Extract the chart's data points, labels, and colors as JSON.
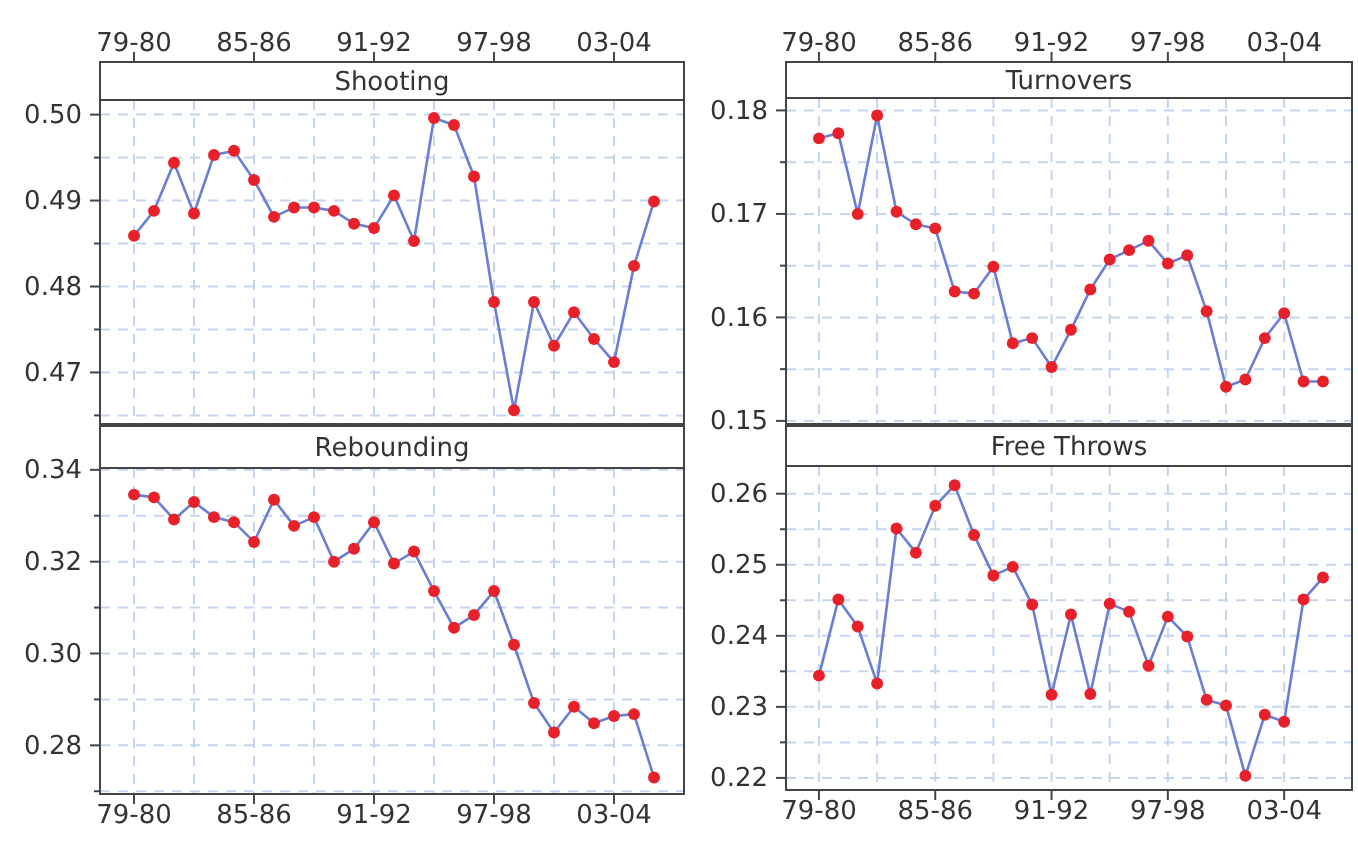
{
  "chart_data": [
    {
      "type": "line",
      "title": "Shooting",
      "categories": [
        "79-80",
        null,
        null,
        null,
        null,
        null,
        "85-86",
        null,
        null,
        null,
        null,
        null,
        "91-92",
        null,
        null,
        null,
        null,
        null,
        "97-98",
        null,
        null,
        null,
        null,
        null,
        "03-04",
        null,
        null
      ],
      "ylim": [
        0.464,
        0.5017
      ],
      "yticks": [
        {
          "value": 0.465,
          "label": null
        },
        {
          "value": 0.47,
          "label": "0.47"
        },
        {
          "value": 0.475,
          "label": null
        },
        {
          "value": 0.48,
          "label": "0.48"
        },
        {
          "value": 0.485,
          "label": null
        },
        {
          "value": 0.49,
          "label": "0.49"
        },
        {
          "value": 0.495,
          "label": null
        },
        {
          "value": 0.5,
          "label": "0.50"
        }
      ],
      "grid": true,
      "marker": "circle",
      "line_style": "solid",
      "series": [
        {
          "color": "#6a7ed4",
          "colors": [
            "#e8202a",
            "#e8202a",
            "#e8202a",
            "#e8202a",
            "#e8202a",
            "#e8202a",
            "#e8202a",
            "#e8202a",
            "#e8202a",
            "#e8202a",
            "#e8202a",
            "#e8202a",
            "#e8202a",
            "#e8202a",
            "#e8202a",
            "#e8202a",
            "#e8202a",
            "#e8202a",
            "#e8202a",
            "#e8202a",
            "#e8202a",
            "#e8202a",
            "#e8202a",
            "#e8202a",
            "#e8202a",
            "#e8202a",
            "#e8202a"
          ],
          "values": [
            0.4859,
            0.4888,
            0.4944,
            0.4885,
            0.4953,
            0.4958,
            0.4924,
            0.4881,
            0.4892,
            0.4892,
            0.4888,
            0.4873,
            0.4868,
            0.4906,
            0.4853,
            0.4996,
            0.4988,
            0.4928,
            0.4782,
            0.4656,
            0.4782,
            0.4731,
            0.477,
            0.4739,
            0.4712,
            0.4824,
            0.4899
          ]
        }
      ]
    },
    {
      "type": "line",
      "title": "Turnovers",
      "categories": [
        "79-80",
        null,
        null,
        null,
        null,
        null,
        "85-86",
        null,
        null,
        null,
        null,
        null,
        "91-92",
        null,
        null,
        null,
        null,
        null,
        "97-98",
        null,
        null,
        null,
        null,
        null,
        "03-04",
        null,
        null
      ],
      "ylim": [
        0.1497,
        0.1812
      ],
      "yticks": [
        {
          "value": 0.15,
          "label": "0.15"
        },
        {
          "value": 0.155,
          "label": null
        },
        {
          "value": 0.16,
          "label": "0.16"
        },
        {
          "value": 0.165,
          "label": null
        },
        {
          "value": 0.17,
          "label": "0.17"
        },
        {
          "value": 0.175,
          "label": null
        },
        {
          "value": 0.18,
          "label": "0.18"
        }
      ],
      "grid": true,
      "marker": "circle",
      "line_style": "solid",
      "series": [
        {
          "color": "#6a7ed4",
          "colors": [
            "#e8202a",
            "#e8202a",
            "#e8202a",
            "#e8202a",
            "#e8202a",
            "#e8202a",
            "#e8202a",
            "#e8202a",
            "#e8202a",
            "#e8202a",
            "#e8202a",
            "#e8202a",
            "#e8202a",
            "#e8202a",
            "#e8202a",
            "#e8202a",
            "#e8202a",
            "#e8202a",
            "#e8202a",
            "#e8202a",
            "#e8202a",
            "#e8202a",
            "#e8202a",
            "#e8202a",
            "#e8202a",
            "#e8202a",
            "#e8202a"
          ],
          "values": [
            0.1773,
            0.1778,
            0.17,
            0.1795,
            0.1702,
            0.169,
            0.1686,
            0.1625,
            0.1623,
            0.1649,
            0.1575,
            0.158,
            0.1552,
            0.1588,
            0.1627,
            0.1656,
            0.1665,
            0.1674,
            0.1652,
            0.166,
            0.1606,
            0.1533,
            0.154,
            0.158,
            0.1604,
            0.1538,
            0.1538
          ]
        }
      ]
    },
    {
      "type": "line",
      "title": "Rebounding",
      "categories": [
        "79-80",
        null,
        null,
        null,
        null,
        null,
        "85-86",
        null,
        null,
        null,
        null,
        null,
        "91-92",
        null,
        null,
        null,
        null,
        null,
        "97-98",
        null,
        null,
        null,
        null,
        null,
        "03-04",
        null,
        null
      ],
      "ylim": [
        0.2694,
        0.3404
      ],
      "yticks": [
        {
          "value": 0.27,
          "label": null
        },
        {
          "value": 0.28,
          "label": "0.28"
        },
        {
          "value": 0.29,
          "label": null
        },
        {
          "value": 0.3,
          "label": "0.30"
        },
        {
          "value": 0.31,
          "label": null
        },
        {
          "value": 0.32,
          "label": "0.32"
        },
        {
          "value": 0.33,
          "label": null
        },
        {
          "value": 0.34,
          "label": "0.34"
        }
      ],
      "grid": true,
      "marker": "circle",
      "line_style": "solid",
      "series": [
        {
          "color": "#6a7ed4",
          "colors": [
            "#e8202a",
            "#e8202a",
            "#e8202a",
            "#e8202a",
            "#e8202a",
            "#e8202a",
            "#e8202a",
            "#e8202a",
            "#e8202a",
            "#e8202a",
            "#e8202a",
            "#e8202a",
            "#e8202a",
            "#e8202a",
            "#e8202a",
            "#e8202a",
            "#e8202a",
            "#e8202a",
            "#e8202a",
            "#e8202a",
            "#e8202a",
            "#e8202a",
            "#e8202a",
            "#e8202a",
            "#e8202a",
            "#e8202a",
            "#e8202a"
          ],
          "values": [
            0.3346,
            0.334,
            0.3292,
            0.333,
            0.3297,
            0.3286,
            0.3243,
            0.3335,
            0.3278,
            0.3297,
            0.32,
            0.3228,
            0.3286,
            0.3196,
            0.3222,
            0.3136,
            0.3056,
            0.3084,
            0.3136,
            0.3019,
            0.2892,
            0.2828,
            0.2884,
            0.2848,
            0.2864,
            0.2868,
            0.273
          ]
        }
      ]
    },
    {
      "type": "line",
      "title": "Free Throws",
      "categories": [
        "79-80",
        null,
        null,
        null,
        null,
        null,
        "85-86",
        null,
        null,
        null,
        null,
        null,
        "91-92",
        null,
        null,
        null,
        null,
        null,
        "97-98",
        null,
        null,
        null,
        null,
        null,
        "03-04",
        null,
        null
      ],
      "ylim": [
        0.2183,
        0.2639
      ],
      "yticks": [
        {
          "value": 0.22,
          "label": "0.22"
        },
        {
          "value": 0.225,
          "label": null
        },
        {
          "value": 0.23,
          "label": "0.23"
        },
        {
          "value": 0.235,
          "label": null
        },
        {
          "value": 0.24,
          "label": "0.24"
        },
        {
          "value": 0.245,
          "label": null
        },
        {
          "value": 0.25,
          "label": "0.25"
        },
        {
          "value": 0.255,
          "label": null
        },
        {
          "value": 0.26,
          "label": "0.26"
        }
      ],
      "grid": true,
      "marker": "circle",
      "line_style": "solid",
      "series": [
        {
          "color": "#6a7ed4",
          "colors": [
            "#e8202a",
            "#e8202a",
            "#e8202a",
            "#e8202a",
            "#e8202a",
            "#e8202a",
            "#e8202a",
            "#e8202a",
            "#e8202a",
            "#e8202a",
            "#e8202a",
            "#e8202a",
            "#e8202a",
            "#e8202a",
            "#e8202a",
            "#e8202a",
            "#e8202a",
            "#e8202a",
            "#e8202a",
            "#e8202a",
            "#e8202a",
            "#e8202a",
            "#e8202a",
            "#e8202a",
            "#e8202a",
            "#e8202a",
            "#e8202a"
          ],
          "values": [
            0.2344,
            0.2451,
            0.2413,
            0.2333,
            0.2551,
            0.2517,
            0.2583,
            0.2612,
            0.2542,
            0.2485,
            0.2497,
            0.2444,
            0.2317,
            0.243,
            0.2318,
            0.2445,
            0.2434,
            0.2358,
            0.2427,
            0.2399,
            0.231,
            0.2302,
            0.2203,
            0.2289,
            0.2279,
            0.2451,
            0.2482
          ]
        }
      ]
    }
  ]
}
